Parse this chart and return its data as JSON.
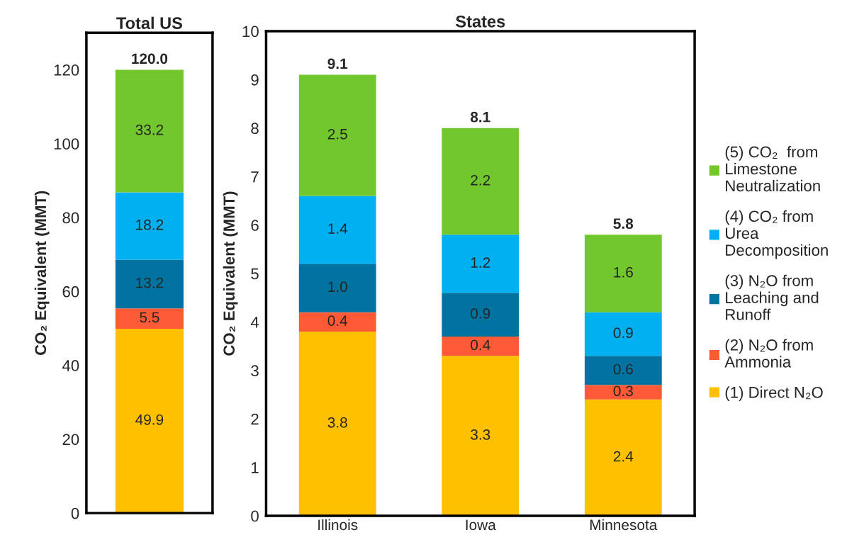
{
  "chart_data": [
    {
      "type": "bar",
      "title": "Total US",
      "ylabel": "CO₂ Equivalent (MMT)",
      "categories": [
        null
      ],
      "stacked": true,
      "ylim": [
        0,
        130
      ],
      "yticks": [
        0,
        20,
        40,
        60,
        80,
        100,
        120
      ],
      "grid": false,
      "legend": false,
      "totals": [
        "120.0"
      ],
      "series": [
        {
          "color": "#ffc000",
          "values": [
            49.9
          ],
          "value_labels": [
            "49.9"
          ]
        },
        {
          "color": "#ff5a35",
          "values": [
            5.5
          ],
          "value_labels": [
            "5.5"
          ]
        },
        {
          "color": "#0073a0",
          "values": [
            13.2
          ],
          "value_labels": [
            "13.2"
          ]
        },
        {
          "color": "#00b0f0",
          "values": [
            18.2
          ],
          "value_labels": [
            "18.2"
          ]
        },
        {
          "color": "#72c72e",
          "values": [
            33.2
          ],
          "value_labels": [
            "33.2"
          ]
        }
      ]
    },
    {
      "type": "bar",
      "title": "States",
      "ylabel": "CO₂ Equivalent (MMT)",
      "categories": [
        "Illinois",
        "Iowa",
        "Minnesota"
      ],
      "stacked": true,
      "ylim": [
        0,
        10
      ],
      "yticks": [
        0,
        1,
        2,
        3,
        4,
        5,
        6,
        7,
        8,
        9,
        10
      ],
      "grid": false,
      "legend": "right",
      "totals": [
        "9.1",
        "8.1",
        "5.8"
      ],
      "series": [
        {
          "name": "(1) Direct N₂O",
          "color": "#ffc000",
          "values": [
            3.8,
            3.3,
            2.4
          ],
          "value_labels": [
            "3.8",
            "3.3",
            "2.4"
          ]
        },
        {
          "name": "(2) N₂O from\nAmmonia",
          "color": "#ff5a35",
          "values": [
            0.4,
            0.4,
            0.3
          ],
          "value_labels": [
            "0.4",
            "0.4",
            "0.3"
          ]
        },
        {
          "name": "(3) N₂O from\nLeaching and\nRunoff",
          "color": "#0073a0",
          "values": [
            1.0,
            0.9,
            0.6
          ],
          "value_labels": [
            "1.0",
            "0.9",
            "0.6"
          ]
        },
        {
          "name": "(4) CO₂ from\nUrea\nDecomposition",
          "color": "#00b0f0",
          "values": [
            1.4,
            1.2,
            0.9
          ],
          "value_labels": [
            "1.4",
            "1.2",
            "0.9"
          ]
        },
        {
          "name": "(5) CO₂  from\nLimestone\nNeutralization",
          "color": "#72c72e",
          "values": [
            2.5,
            2.2,
            1.6
          ],
          "value_labels": [
            "2.5",
            "2.2",
            "1.6"
          ]
        }
      ]
    }
  ]
}
